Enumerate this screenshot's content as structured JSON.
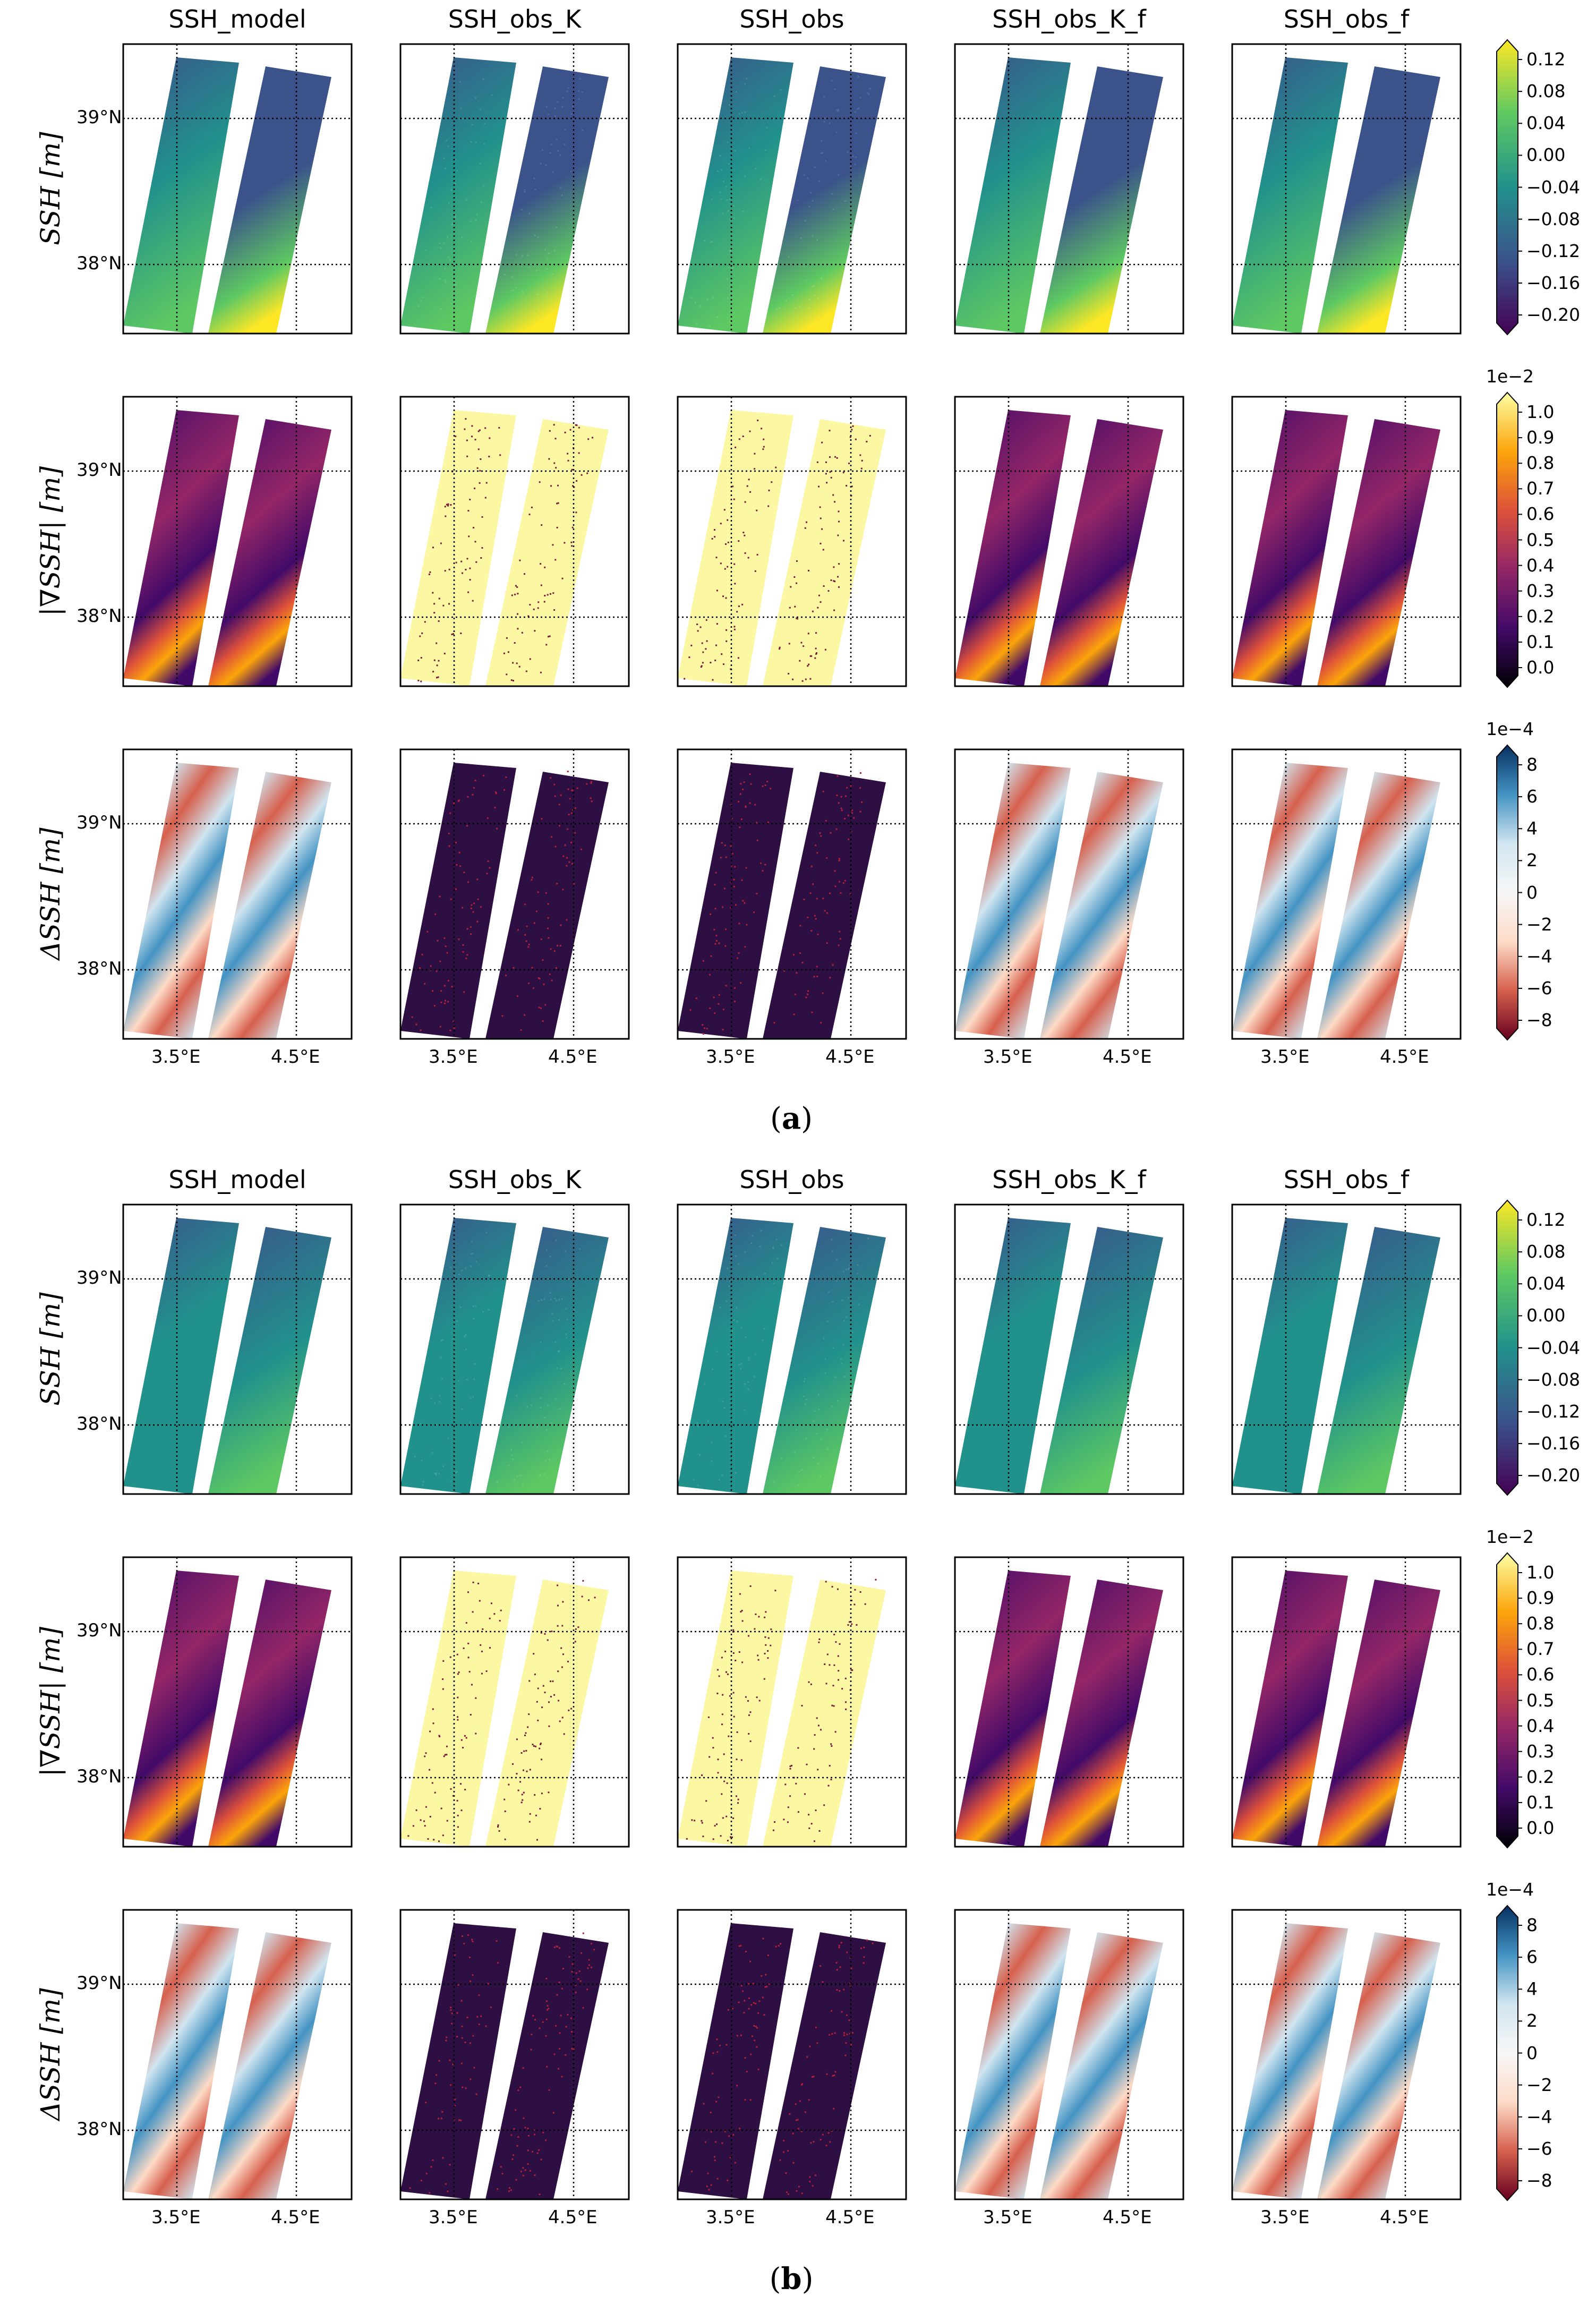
{
  "columns": [
    "SSH_model",
    "SSH_obs_K",
    "SSH_obs",
    "SSH_obs_K_f",
    "SSH_obs_f"
  ],
  "row_labels": {
    "ssh": "SSH [m]",
    "grad": "|∇SSH| [m]",
    "lap": "ΔSSH [m]"
  },
  "lat_ticks": [
    "39°N",
    "38°N"
  ],
  "lon_ticks": [
    "3.5°E",
    "4.5°E"
  ],
  "colorbars": {
    "ssh": {
      "ticks": [
        "0.12",
        "0.08",
        "0.04",
        "0.00",
        "−0.04",
        "−0.08",
        "−0.12",
        "−0.16",
        "−0.20"
      ],
      "exponent": ""
    },
    "grad": {
      "ticks": [
        "1.0",
        "0.9",
        "0.8",
        "0.7",
        "0.6",
        "0.5",
        "0.4",
        "0.3",
        "0.2",
        "0.1",
        "0.0"
      ],
      "exponent": "1e−2"
    },
    "lap": {
      "ticks": [
        "8",
        "6",
        "4",
        "2",
        "0",
        "−2",
        "−4",
        "−6",
        "−8"
      ],
      "exponent": "1e−4"
    }
  },
  "captions": {
    "a": "a",
    "b": "b"
  },
  "colors": {
    "viridis": [
      "#440154",
      "#3b528b",
      "#21918c",
      "#5ec962",
      "#fde725"
    ],
    "inferno": [
      "#000004",
      "#420a68",
      "#932667",
      "#dd513a",
      "#fca50a",
      "#fcffa4"
    ],
    "rdbu": [
      "#67001f",
      "#d6604d",
      "#fddbc7",
      "#f7f7f7",
      "#d1e5f0",
      "#4393c3",
      "#053061"
    ]
  }
}
